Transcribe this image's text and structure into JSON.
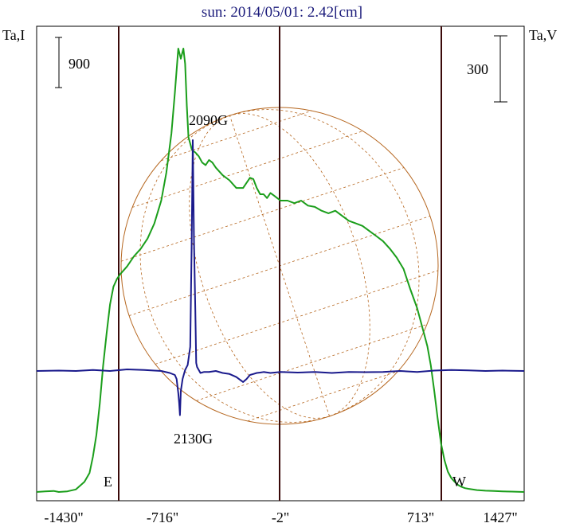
{
  "chart_data": {
    "type": "line",
    "title": "sun: 2014/05/01: 2.42[cm]",
    "left_axis_label": "Ta,I",
    "right_axis_label": "Ta,V",
    "left_scale_bar_label": "900",
    "right_scale_bar_label": "300",
    "x_tick_labels": [
      "-1430\"",
      "-716\"",
      "-2\"",
      "713\"",
      "1427\""
    ],
    "xlim": [
      -1430,
      1427
    ],
    "east_label": "E",
    "west_label": "W",
    "annotations": [
      "2090G",
      "2130G"
    ],
    "series": [
      {
        "values_x": [
          -1430,
          -1380,
          -1330,
          -1300,
          -1250,
          -1200,
          -1150,
          -1120,
          -1100,
          -1080,
          -1060,
          -1040,
          -1020,
          -1000,
          -980,
          -960,
          -940,
          -900,
          -860,
          -820,
          -780,
          -740,
          -700,
          -670,
          -640,
          -620,
          -600,
          -585,
          -570,
          -560,
          -550,
          -540,
          -530,
          -520,
          -500,
          -480,
          -460,
          -440,
          -420,
          -400,
          -380,
          -340,
          -300,
          -260,
          -220,
          -200,
          -180,
          -160,
          -140,
          -120,
          -100,
          -80,
          -60,
          -40,
          -20,
          0,
          40,
          80,
          120,
          160,
          200,
          240,
          280,
          320,
          360,
          400,
          440,
          480,
          520,
          560,
          600,
          640,
          680,
          720,
          760,
          800,
          840,
          860,
          880,
          900,
          920,
          940,
          960,
          980,
          1000,
          1020,
          1040,
          1060,
          1080,
          1100,
          1150,
          1200,
          1250,
          1300,
          1350,
          1427
        ],
        "values_y": [
          0,
          5,
          8,
          0,
          5,
          20,
          80,
          150,
          280,
          450,
          700,
          1000,
          1250,
          1480,
          1620,
          1680,
          1720,
          1780,
          1860,
          1920,
          2000,
          2120,
          2300,
          2520,
          2830,
          3150,
          3500,
          3420,
          3500,
          3380,
          3050,
          2800,
          2750,
          2700,
          2680,
          2650,
          2600,
          2580,
          2620,
          2600,
          2560,
          2500,
          2460,
          2400,
          2400,
          2440,
          2480,
          2470,
          2400,
          2350,
          2350,
          2320,
          2360,
          2340,
          2320,
          2300,
          2300,
          2280,
          2300,
          2260,
          2250,
          2220,
          2200,
          2220,
          2180,
          2140,
          2120,
          2100,
          2060,
          2020,
          1980,
          1920,
          1850,
          1760,
          1600,
          1450,
          1250,
          1150,
          1000,
          800,
          580,
          380,
          250,
          160,
          110,
          80,
          55,
          40,
          30,
          25,
          15,
          10,
          8,
          5,
          3,
          0
        ]
      },
      {
        "values_x": [
          -1430,
          -1300,
          -1200,
          -1100,
          -1000,
          -900,
          -800,
          -700,
          -650,
          -620,
          -610,
          -600,
          -595,
          -590,
          -585,
          -575,
          -560,
          -545,
          -530,
          -522,
          -515,
          -508,
          -500,
          -495,
          -490,
          -480,
          -470,
          -450,
          -420,
          -380,
          -340,
          -300,
          -260,
          -220,
          -200,
          -180,
          -160,
          -140,
          -120,
          -100,
          -60,
          0,
          100,
          200,
          300,
          400,
          500,
          600,
          700,
          800,
          900,
          1000,
          1100,
          1200,
          1300,
          1427
        ],
        "values_y": [
          0,
          2,
          0,
          5,
          0,
          8,
          5,
          0,
          -10,
          -20,
          -40,
          -110,
          -160,
          -220,
          -100,
          -40,
          5,
          30,
          120,
          600,
          1150,
          650,
          300,
          40,
          20,
          5,
          -10,
          -5,
          -5,
          0,
          -10,
          -15,
          -30,
          -55,
          -40,
          -20,
          -15,
          -10,
          -8,
          -5,
          -10,
          -5,
          -8,
          -5,
          -10,
          -5,
          -6,
          -5,
          0,
          -5,
          2,
          5,
          3,
          0,
          2,
          0
        ]
      }
    ]
  }
}
